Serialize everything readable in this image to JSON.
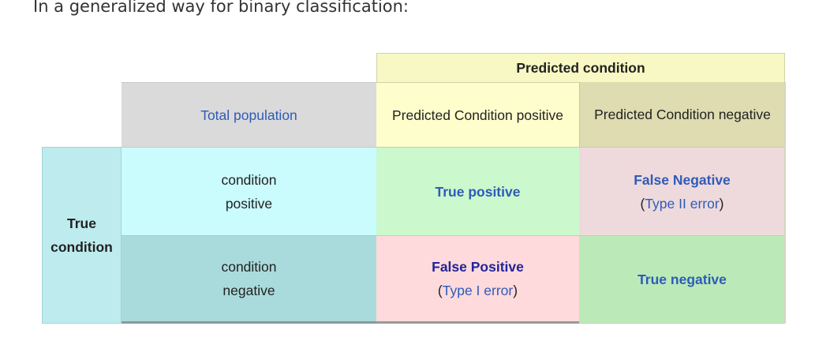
{
  "intro_text": "In a generalized way for binary classification:",
  "table": {
    "predicted_condition": "Predicted condition",
    "total_population": "Total population",
    "predicted_positive": "Predicted Condition positive",
    "predicted_negative": "Predicted Condition negative",
    "true_condition_line1": "True",
    "true_condition_line2": "condition",
    "condition_positive_line1": "condition",
    "condition_positive_line2": "positive",
    "condition_negative_line1": "condition",
    "condition_negative_line2": "negative",
    "true_positive": "True positive",
    "false_negative": "False Negative",
    "false_negative_type": "Type II error",
    "false_positive": "False Positive",
    "false_positive_type": "Type I error",
    "true_negative": "True negative",
    "paren_open": "(",
    "paren_close": ")"
  },
  "colors": {
    "link_blue": "#2e5bb8",
    "bold_navy": "#23249a",
    "predicted_header_bg": "#f8f8c4",
    "total_population_bg": "#dadada",
    "true_condition_bg": "#bdebee",
    "true_positive_bg": "#cbf8cd",
    "false_negative_bg": "#eedadc",
    "false_positive_bg": "#fedadc",
    "true_negative_bg": "#bbeab8"
  }
}
